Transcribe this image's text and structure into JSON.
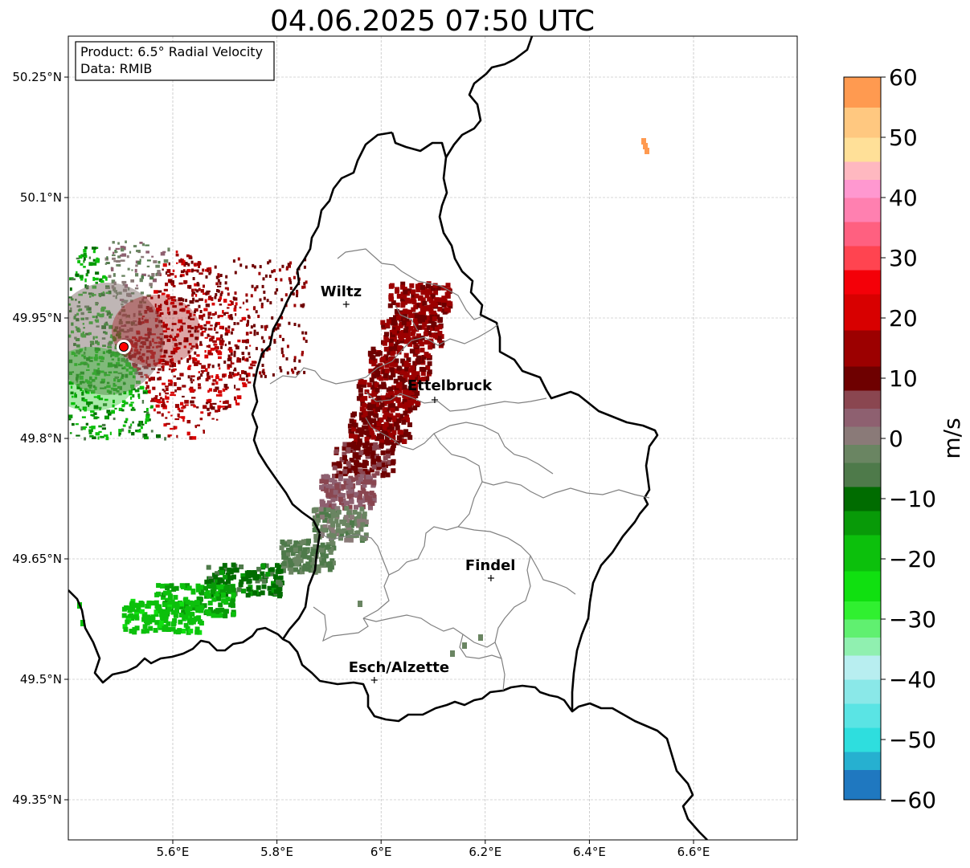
{
  "title": "04.06.2025 07:50 UTC",
  "info_box": {
    "line1": "Product: 6.5° Radial Velocity",
    "line2": "Data: RMIB"
  },
  "map": {
    "lon_range": [
      5.4,
      6.8
    ],
    "lat_range": [
      49.3,
      50.3
    ],
    "lon_ticks": [
      {
        "value": 5.6,
        "label": "5.6°E"
      },
      {
        "value": 5.8,
        "label": "5.8°E"
      },
      {
        "value": 6.0,
        "label": "6°E"
      },
      {
        "value": 6.2,
        "label": "6.2°E"
      },
      {
        "value": 6.4,
        "label": "6.4°E"
      },
      {
        "value": 6.6,
        "label": "6.6°E"
      }
    ],
    "lat_ticks": [
      {
        "value": 50.25,
        "label": "50.25°N"
      },
      {
        "value": 50.1,
        "label": "50.1°N"
      },
      {
        "value": 49.95,
        "label": "49.95°N"
      },
      {
        "value": 49.8,
        "label": "49.8°N"
      },
      {
        "value": 49.65,
        "label": "49.65°N"
      },
      {
        "value": 49.5,
        "label": "49.5°N"
      },
      {
        "value": 49.35,
        "label": "49.35°N"
      }
    ],
    "gridlines": true,
    "radar_site": {
      "lon": 5.506,
      "lat": 49.914
    },
    "cities": [
      {
        "name": "Wiltz",
        "lon": 5.933,
        "lat": 49.967
      },
      {
        "name": "Ettelbruck",
        "lon": 6.103,
        "lat": 49.848
      },
      {
        "name": "Findel",
        "lon": 6.211,
        "lat": 49.626
      },
      {
        "name": "Esch/Alzette",
        "lon": 5.987,
        "lat": 49.499
      }
    ]
  },
  "colorbar": {
    "unit": "m/s",
    "min": -60,
    "max": 60,
    "ticks": [
      {
        "value": 60,
        "label": "60"
      },
      {
        "value": 50,
        "label": "50"
      },
      {
        "value": 40,
        "label": "40"
      },
      {
        "value": 30,
        "label": "30"
      },
      {
        "value": 20,
        "label": "20"
      },
      {
        "value": 10,
        "label": "10"
      },
      {
        "value": 0,
        "label": "0"
      },
      {
        "value": -10,
        "label": "−10"
      },
      {
        "value": -20,
        "label": "−20"
      },
      {
        "value": -30,
        "label": "−30"
      },
      {
        "value": -40,
        "label": "−40"
      },
      {
        "value": -50,
        "label": "−50"
      },
      {
        "value": -60,
        "label": "−60"
      }
    ],
    "stops": [
      {
        "from": -60,
        "to": -55,
        "color": "#1f78c0"
      },
      {
        "from": -55,
        "to": -52,
        "color": "#26b0d0"
      },
      {
        "from": -52,
        "to": -48,
        "color": "#2edede"
      },
      {
        "from": -48,
        "to": -44,
        "color": "#5ae4e4"
      },
      {
        "from": -44,
        "to": -40,
        "color": "#8ae8e8"
      },
      {
        "from": -40,
        "to": -36,
        "color": "#b8eef0"
      },
      {
        "from": -36,
        "to": -33,
        "color": "#90f0b0"
      },
      {
        "from": -33,
        "to": -30,
        "color": "#60f070"
      },
      {
        "from": -30,
        "to": -27,
        "color": "#30f030"
      },
      {
        "from": -27,
        "to": -22,
        "color": "#10e010"
      },
      {
        "from": -22,
        "to": -16,
        "color": "#0cc00c"
      },
      {
        "from": -16,
        "to": -12,
        "color": "#089a08"
      },
      {
        "from": -12,
        "to": -8,
        "color": "#006c00"
      },
      {
        "from": -8,
        "to": -4,
        "color": "#4e7a4a"
      },
      {
        "from": -4,
        "to": -1,
        "color": "#6a8562"
      },
      {
        "from": -1,
        "to": 2,
        "color": "#8a7a78"
      },
      {
        "from": 2,
        "to": 5,
        "color": "#8e6070"
      },
      {
        "from": 5,
        "to": 8,
        "color": "#8a4650"
      },
      {
        "from": 8,
        "to": 12,
        "color": "#6e0000"
      },
      {
        "from": 12,
        "to": 18,
        "color": "#9c0000"
      },
      {
        "from": 18,
        "to": 24,
        "color": "#d80000"
      },
      {
        "from": 24,
        "to": 28,
        "color": "#f40008"
      },
      {
        "from": 28,
        "to": 32,
        "color": "#ff4450"
      },
      {
        "from": 32,
        "to": 36,
        "color": "#ff6080"
      },
      {
        "from": 36,
        "to": 40,
        "color": "#ff80b0"
      },
      {
        "from": 40,
        "to": 43,
        "color": "#ff98d0"
      },
      {
        "from": 43,
        "to": 46,
        "color": "#ffb8c0"
      },
      {
        "from": 46,
        "to": 50,
        "color": "#ffe098"
      },
      {
        "from": 50,
        "to": 55,
        "color": "#ffc880"
      },
      {
        "from": 55,
        "to": 60,
        "color": "#ff9a50"
      }
    ]
  },
  "colors": {
    "radar_site_fill": "#ff0000",
    "border": "#000000",
    "canton_border": "#808080",
    "grid": "#b0b0b0"
  }
}
